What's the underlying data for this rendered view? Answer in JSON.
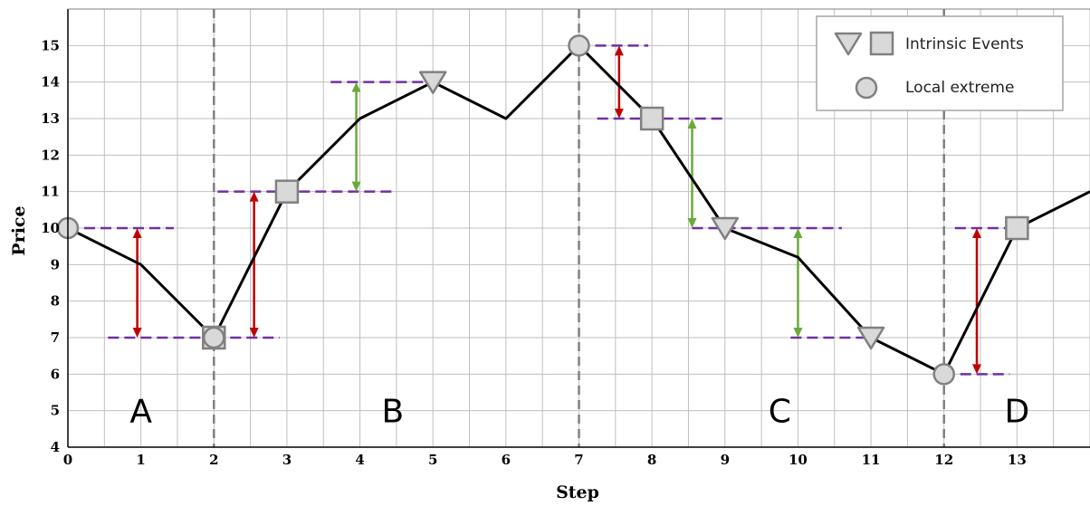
{
  "chart_data": {
    "type": "line",
    "xlabel": "Step",
    "ylabel": "Price",
    "xlim": [
      0,
      14
    ],
    "ylim": [
      4,
      16
    ],
    "x_ticks": [
      0,
      1,
      2,
      3,
      4,
      5,
      6,
      7,
      8,
      9,
      10,
      11,
      12,
      13
    ],
    "y_ticks": [
      4,
      5,
      6,
      7,
      8,
      9,
      10,
      11,
      12,
      13,
      14,
      15
    ],
    "grid": true,
    "series": [
      {
        "x": [
          0,
          1,
          2,
          3,
          4,
          5,
          6,
          7,
          8,
          9,
          10,
          11,
          12,
          13,
          14
        ],
        "y": [
          10,
          9,
          7,
          11,
          13,
          14,
          13,
          15,
          13,
          10,
          9.2,
          7,
          6,
          10,
          11
        ],
        "color": "#000000"
      }
    ],
    "local_extremes": [
      {
        "x": 0,
        "y": 10
      },
      {
        "x": 2,
        "y": 7
      },
      {
        "x": 7,
        "y": 15
      },
      {
        "x": 12,
        "y": 6
      }
    ],
    "intrinsic_events": [
      {
        "x": 2,
        "y": 7,
        "marker": "square"
      },
      {
        "x": 3,
        "y": 11,
        "marker": "square"
      },
      {
        "x": 5,
        "y": 14,
        "marker": "triangle"
      },
      {
        "x": 8,
        "y": 13,
        "marker": "square"
      },
      {
        "x": 9,
        "y": 10,
        "marker": "triangle"
      },
      {
        "x": 11,
        "y": 7,
        "marker": "triangle"
      },
      {
        "x": 13,
        "y": 10,
        "marker": "square"
      }
    ],
    "threshold_lines": [
      {
        "x1": 0,
        "x2": 1.45,
        "y": 10
      },
      {
        "x1": 0.55,
        "x2": 2.0,
        "y": 7
      },
      {
        "x1": 2.0,
        "x2": 2.9,
        "y": 7
      },
      {
        "x1": 2.05,
        "x2": 4.5,
        "y": 11
      },
      {
        "x1": 3.6,
        "x2": 5.0,
        "y": 14
      },
      {
        "x1": 7.0,
        "x2": 7.95,
        "y": 15
      },
      {
        "x1": 7.25,
        "x2": 9.0,
        "y": 13
      },
      {
        "x1": 8.55,
        "x2": 10.6,
        "y": 10
      },
      {
        "x1": 9.9,
        "x2": 11.0,
        "y": 7
      },
      {
        "x1": 12.0,
        "x2": 12.9,
        "y": 6
      },
      {
        "x1": 12.15,
        "x2": 13.0,
        "y": 10
      }
    ],
    "arrows": [
      {
        "x": 0.95,
        "y1": 7,
        "y2": 10,
        "color": "#c00000"
      },
      {
        "x": 2.55,
        "y1": 7,
        "y2": 11,
        "color": "#c00000"
      },
      {
        "x": 3.95,
        "y1": 11,
        "y2": 14,
        "color": "#6aaa3a"
      },
      {
        "x": 7.55,
        "y1": 13,
        "y2": 15,
        "color": "#c00000"
      },
      {
        "x": 8.55,
        "y1": 10,
        "y2": 13,
        "color": "#6aaa3a"
      },
      {
        "x": 10.0,
        "y1": 7,
        "y2": 10,
        "color": "#6aaa3a"
      },
      {
        "x": 12.45,
        "y1": 6,
        "y2": 10,
        "color": "#c00000"
      }
    ],
    "dashed_vertical_lines": [
      2,
      7,
      12
    ],
    "regions": [
      {
        "label": "A",
        "x": 1.0
      },
      {
        "label": "B",
        "x": 4.45
      },
      {
        "label": "C",
        "x": 9.75
      },
      {
        "label": "D",
        "x": 13.0
      }
    ],
    "legend": {
      "position": "top-right",
      "entries": [
        {
          "label": "Intrinsic Events",
          "markers": [
            "triangle",
            "square"
          ]
        },
        {
          "label": "Local extreme",
          "markers": [
            "circle"
          ]
        }
      ]
    },
    "colors": {
      "line": "#000000",
      "threshold": "#7030a0",
      "up_arrow": "#c00000",
      "down_arrow": "#6aaa3a",
      "marker_fill": "#d9d9d9",
      "marker_stroke": "#808080",
      "grid": "#bfbfbf"
    }
  }
}
